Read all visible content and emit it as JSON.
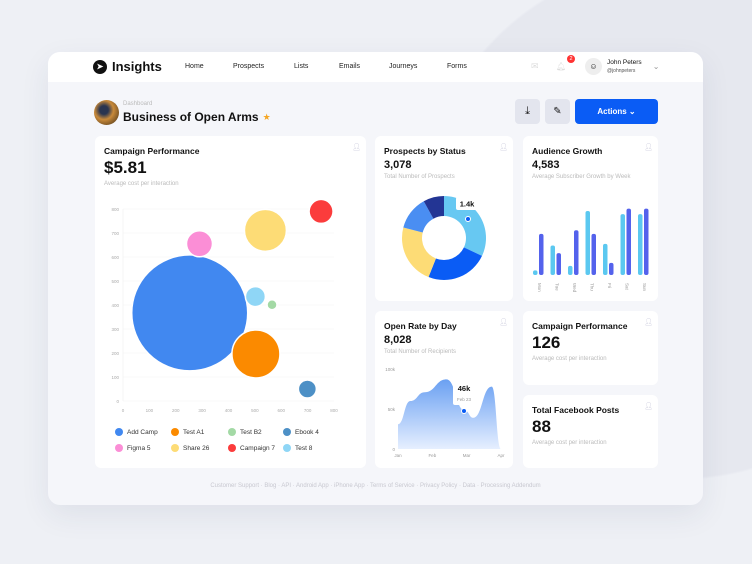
{
  "nav": {
    "app": "Insights",
    "items": [
      "Home",
      "Prospects",
      "Lists",
      "Emails",
      "Journeys",
      "Forms"
    ],
    "notif_count": "2",
    "user_name": "John Peters",
    "user_handle": "@johnpeters"
  },
  "header": {
    "breadcrumb": "Dashboard",
    "title": "Business of Open Arms",
    "actions_label": "Actions ⌄"
  },
  "campaign": {
    "title": "Campaign Performance",
    "value": "$5.81",
    "subtitle": "Average cost per interaction"
  },
  "prospects": {
    "title": "Prospects by Status",
    "value": "3,078",
    "subtitle": "Total Number of Prospects",
    "tooltip": "1.4k"
  },
  "audience": {
    "title": "Audience Growth",
    "value": "4,583",
    "subtitle": "Average Subscriber Growth by Week"
  },
  "openrate": {
    "title": "Open Rate by Day",
    "value": "8,028",
    "subtitle": "Total Number of Recipients",
    "tooltip_value": "46k",
    "tooltip_date": "Feb 23"
  },
  "campaign2": {
    "title": "Campaign Performance",
    "value": "126",
    "subtitle": "Average cost per interaction"
  },
  "facebook": {
    "title": "Total Facebook Posts",
    "value": "88",
    "subtitle": "Average cost per interaction"
  },
  "footer": "Customer Support · Blog · API · Android App · iPhone App · Terms of Service · Privacy Policy · Data · Processing Addendum",
  "colors": {
    "accent": "#0a5cf5"
  },
  "chart_data": [
    {
      "type": "scatter",
      "subtype": "bubble",
      "xlim": [
        0,
        800
      ],
      "ylim": [
        0,
        800
      ],
      "xticks": [
        "0",
        "100",
        "200",
        "300",
        "400",
        "500",
        "600",
        "700",
        "800"
      ],
      "yticks": [
        "0",
        "100",
        "200",
        "300",
        "400",
        "500",
        "600",
        "700",
        "800"
      ],
      "grid": true,
      "legend": "bottom",
      "series": [
        {
          "name": "Add Camp",
          "x": 253,
          "y": 367,
          "size": 58,
          "color": "#4188f0"
        },
        {
          "name": "Test A1",
          "x": 504,
          "y": 196,
          "size": 24,
          "color": "#fb8a00"
        },
        {
          "name": "Test B2",
          "x": 565,
          "y": 401,
          "size": 5,
          "color": "#a3d9a5"
        },
        {
          "name": "Ebook 4",
          "x": 699,
          "y": 50,
          "size": 9,
          "color": "#4d90c6"
        },
        {
          "name": "Figma 5",
          "x": 290,
          "y": 655,
          "size": 13,
          "color": "#fb8ed6"
        },
        {
          "name": "Share  26",
          "x": 540,
          "y": 711,
          "size": 21,
          "color": "#fddc76"
        },
        {
          "name": "Campaign 7",
          "x": 751,
          "y": 790,
          "size": 12,
          "color": "#fb3c3c"
        },
        {
          "name": "Test 8",
          "x": 502,
          "y": 435,
          "size": 10,
          "color": "#8fd6f6"
        }
      ]
    },
    {
      "type": "pie",
      "donut": true,
      "values": [
        32,
        24,
        23,
        13,
        8
      ],
      "colors": [
        "#67c8f2",
        "#0a5cf5",
        "#fddc76",
        "#4a8ef2",
        "#233594"
      ]
    },
    {
      "type": "bar",
      "categories": [
        "Mon",
        "Tue",
        "Wed",
        "Thu",
        "Fri",
        "Sat",
        "Sun"
      ],
      "series": [
        {
          "values": [
            15,
            97,
            30,
            210,
            102,
            200,
            200
          ],
          "color": "#5bc8f0"
        },
        {
          "values": [
            135,
            72,
            147,
            135,
            40,
            218,
            218
          ],
          "color": "#5462ec"
        }
      ]
    },
    {
      "type": "area",
      "x": [
        "Jan",
        "Feb",
        "Mar",
        "Apr"
      ],
      "ylim": [
        0,
        100000
      ],
      "yticks": [
        "0",
        "50k",
        "100k"
      ],
      "points": [
        [
          0,
          31000
        ],
        [
          0.12,
          60000
        ],
        [
          0.26,
          71000
        ],
        [
          0.47,
          87000
        ],
        [
          0.65,
          48000
        ],
        [
          0.73,
          39000
        ],
        [
          0.91,
          78000
        ],
        [
          1,
          0
        ]
      ]
    }
  ]
}
